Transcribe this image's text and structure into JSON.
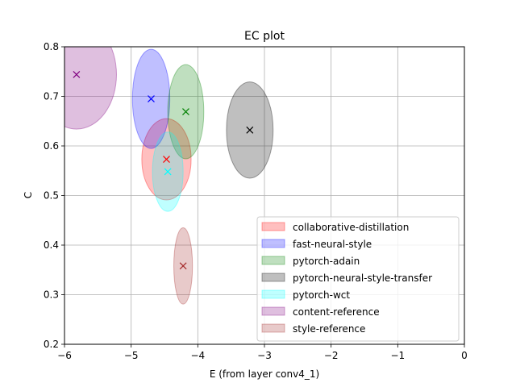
{
  "chart_data": {
    "type": "scatter",
    "title": "EC plot",
    "xlabel": "E (from layer conv4_1)",
    "ylabel": "C",
    "xlim": [
      -6,
      0
    ],
    "ylim": [
      0.2,
      0.8
    ],
    "xticks": [
      -6,
      -5,
      -4,
      -3,
      -2,
      -1,
      0
    ],
    "yticks": [
      0.2,
      0.3,
      0.4,
      0.5,
      0.6,
      0.7,
      0.8
    ],
    "xtick_labels": [
      "−6",
      "−5",
      "−4",
      "−3",
      "−2",
      "−1",
      "0"
    ],
    "ytick_labels": [
      "0.2",
      "0.3",
      "0.4",
      "0.5",
      "0.6",
      "0.7",
      "0.8"
    ],
    "grid": true,
    "legend": "bottom-right",
    "series": [
      {
        "name": "collaborative-distillation",
        "color": "#ff0000",
        "x": -4.47,
        "y": 0.573,
        "ex": 0.37,
        "ey": 0.082
      },
      {
        "name": "fast-neural-style",
        "color": "#0000ff",
        "x": -4.7,
        "y": 0.695,
        "ex": 0.28,
        "ey": 0.1
      },
      {
        "name": "pytorch-adain",
        "color": "#008000",
        "x": -4.18,
        "y": 0.669,
        "ex": 0.27,
        "ey": 0.095
      },
      {
        "name": "pytorch-neural-style-transfer",
        "color": "#000000",
        "x": -3.22,
        "y": 0.632,
        "ex": 0.35,
        "ey": 0.097
      },
      {
        "name": "pytorch-wct",
        "color": "#00ffff",
        "x": -4.45,
        "y": 0.548,
        "ex": 0.23,
        "ey": 0.08
      },
      {
        "name": "content-reference",
        "color": "#800080",
        "x": -5.82,
        "y": 0.744,
        "ex": 0.6,
        "ey": 0.11
      },
      {
        "name": "style-reference",
        "color": "#a52a2a",
        "x": -4.22,
        "y": 0.358,
        "ex": 0.14,
        "ey": 0.077
      }
    ]
  }
}
